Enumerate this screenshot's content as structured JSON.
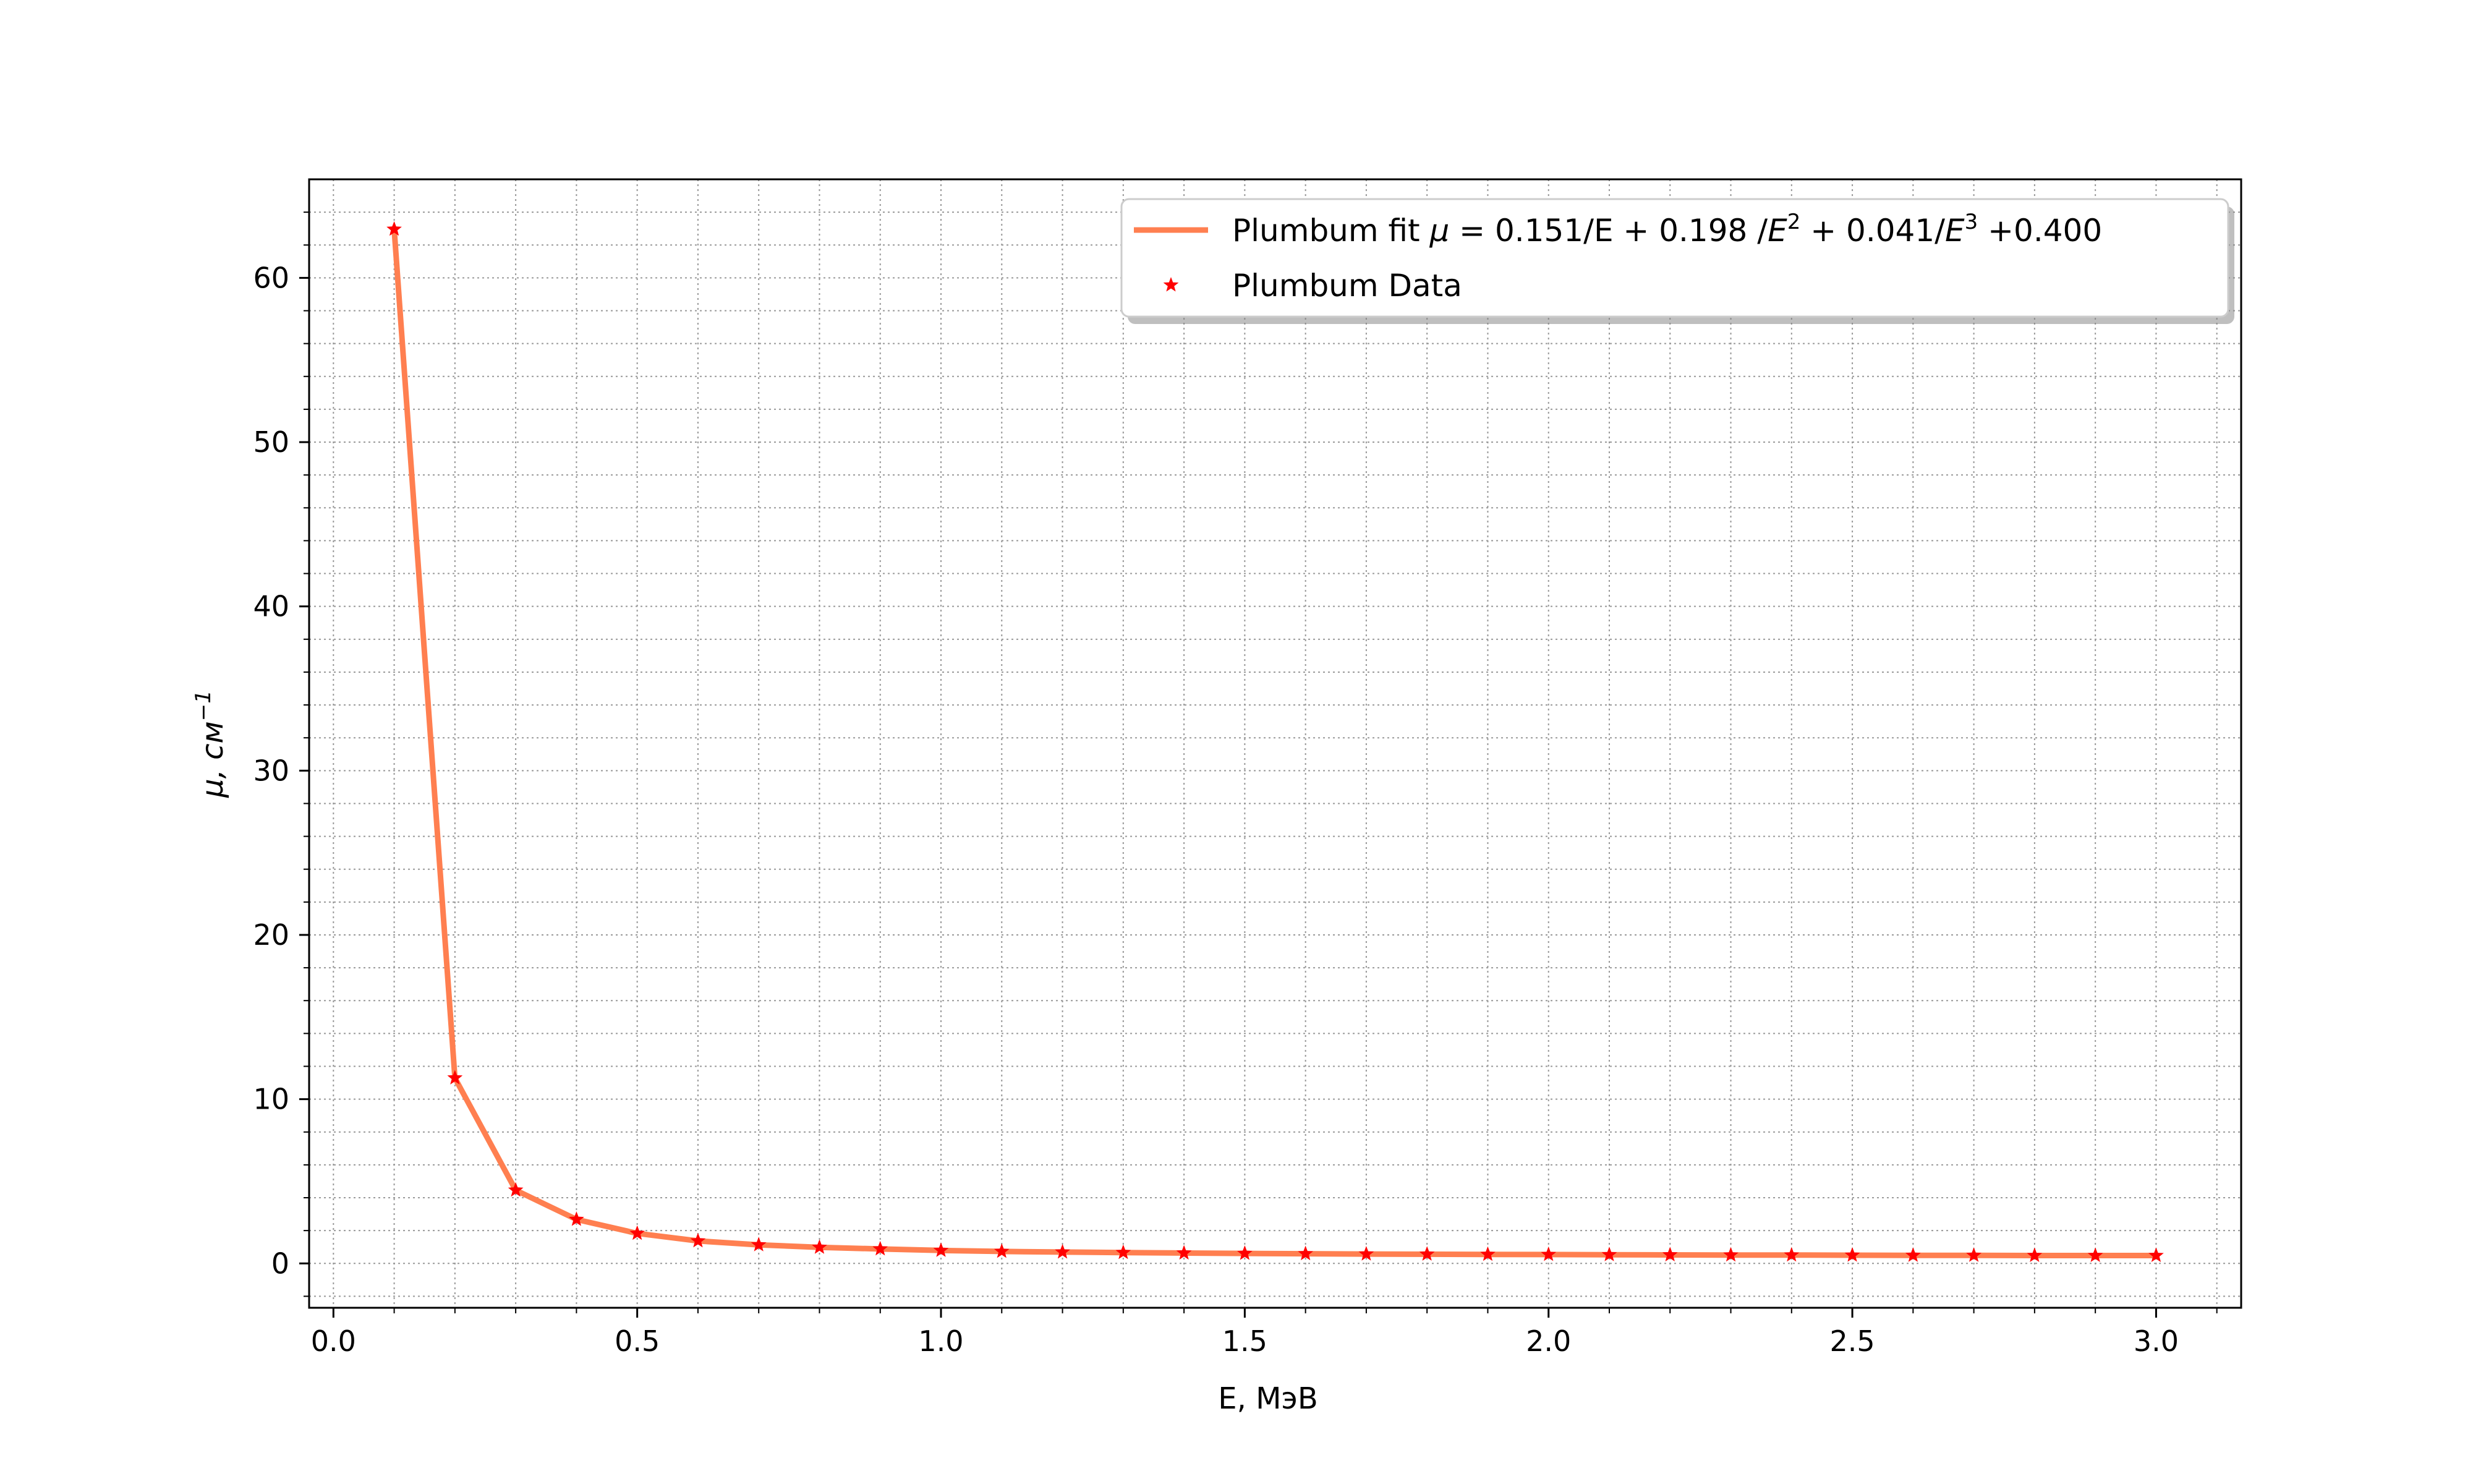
{
  "chart_data": {
    "type": "line",
    "title": "",
    "xlabel": "E, МэВ",
    "ylabel": {
      "base": "μ, см",
      "sup": "−1"
    },
    "xlim": [
      -0.04,
      3.14
    ],
    "ylim": [
      -2.7,
      66
    ],
    "xticks": [
      0.0,
      0.5,
      1.0,
      1.5,
      2.0,
      2.5,
      3.0
    ],
    "xtick_labels": [
      "0.0",
      "0.5",
      "1.0",
      "1.5",
      "2.0",
      "2.5",
      "3.0"
    ],
    "yticks": [
      0,
      10,
      20,
      30,
      40,
      50,
      60
    ],
    "ytick_labels": [
      "0",
      "10",
      "20",
      "30",
      "40",
      "50",
      "60"
    ],
    "grid": true,
    "minor_grid": true,
    "legend_position": "top-right",
    "series": [
      {
        "name": "Plumbum fit μ = 0.151/E + 0.198 /E² + 0.041/E³ +0.400",
        "legend": {
          "pre": "Plumbum fit ",
          "mu": "μ",
          "mid1": " = 0.151/E + 0.198 /",
          "e1": "E",
          "sup1": "2",
          "mid2": " + 0.041/",
          "e2": "E",
          "sup2": "3",
          "post": " +0.400"
        },
        "kind": "line",
        "color": "#ff7f50",
        "x": [
          0.1,
          0.2,
          0.3,
          0.4,
          0.5,
          0.6,
          0.7,
          0.8,
          0.9,
          1.0,
          1.1,
          1.2,
          1.3,
          1.4,
          1.5,
          1.6,
          1.7,
          1.8,
          1.9,
          2.0,
          2.1,
          2.2,
          2.3,
          2.4,
          2.5,
          2.6,
          2.7,
          2.8,
          2.9,
          3.0
        ],
        "y": [
          62.96,
          11.29,
          4.46,
          2.68,
          1.83,
          1.37,
          1.13,
          0.98,
          0.88,
          0.79,
          0.73,
          0.69,
          0.66,
          0.63,
          0.61,
          0.59,
          0.57,
          0.56,
          0.55,
          0.54,
          0.53,
          0.52,
          0.51,
          0.51,
          0.5,
          0.49,
          0.49,
          0.48,
          0.48,
          0.48
        ]
      },
      {
        "name": "Plumbum Data",
        "kind": "scatter",
        "marker": "star",
        "color": "#ff0000",
        "x": [
          0.1,
          0.2,
          0.3,
          0.4,
          0.5,
          0.6,
          0.7,
          0.8,
          0.9,
          1.0,
          1.1,
          1.2,
          1.3,
          1.4,
          1.5,
          1.6,
          1.7,
          1.8,
          1.9,
          2.0,
          2.1,
          2.2,
          2.3,
          2.4,
          2.5,
          2.6,
          2.7,
          2.8,
          2.9,
          3.0
        ],
        "y": [
          62.96,
          11.29,
          4.46,
          2.68,
          1.83,
          1.37,
          1.13,
          0.98,
          0.88,
          0.79,
          0.73,
          0.69,
          0.66,
          0.63,
          0.61,
          0.59,
          0.57,
          0.56,
          0.55,
          0.54,
          0.53,
          0.52,
          0.51,
          0.51,
          0.5,
          0.49,
          0.49,
          0.48,
          0.48,
          0.48
        ]
      }
    ]
  }
}
